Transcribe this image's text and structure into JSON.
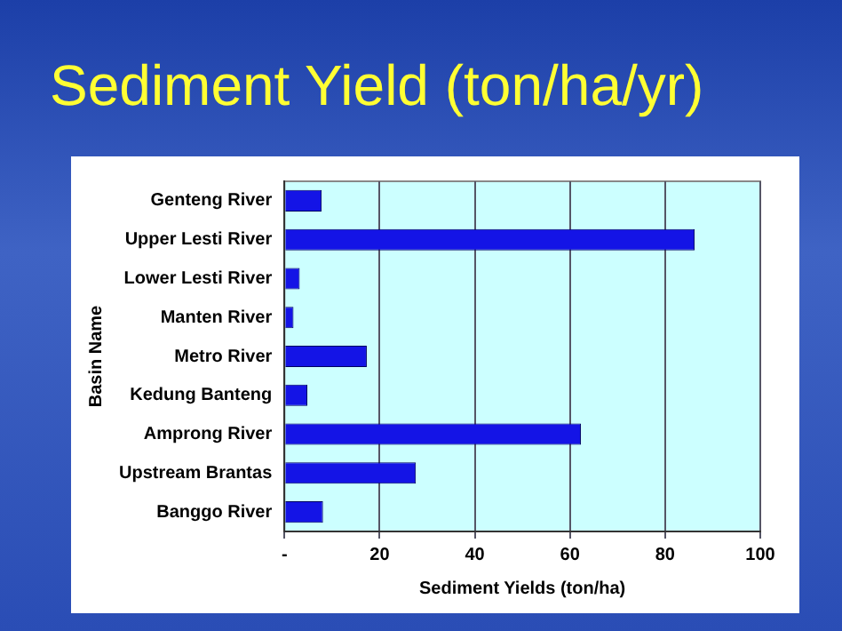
{
  "chart_data": {
    "type": "bar",
    "orientation": "horizontal",
    "title": "Sediment Yield (ton/ha/yr)",
    "xlabel": "Sediment Yields (ton/ha)",
    "ylabel": "Basin Name",
    "categories": [
      "Genteng River",
      "Upper Lesti River",
      "Lower Lesti River",
      "Manten River",
      "Metro River",
      "Kedung Banteng",
      "Amprong River",
      "Upstream Brantas",
      "Banggo River"
    ],
    "values": [
      7.8,
      86.2,
      3.2,
      1.9,
      17.3,
      4.8,
      62.3,
      27.6,
      8.1
    ],
    "color": "#1414e6",
    "xlim": [
      0,
      100
    ],
    "xticks": [
      {
        "value": 0,
        "label": "-"
      },
      20,
      40,
      60,
      80,
      100
    ],
    "grid": "x"
  }
}
